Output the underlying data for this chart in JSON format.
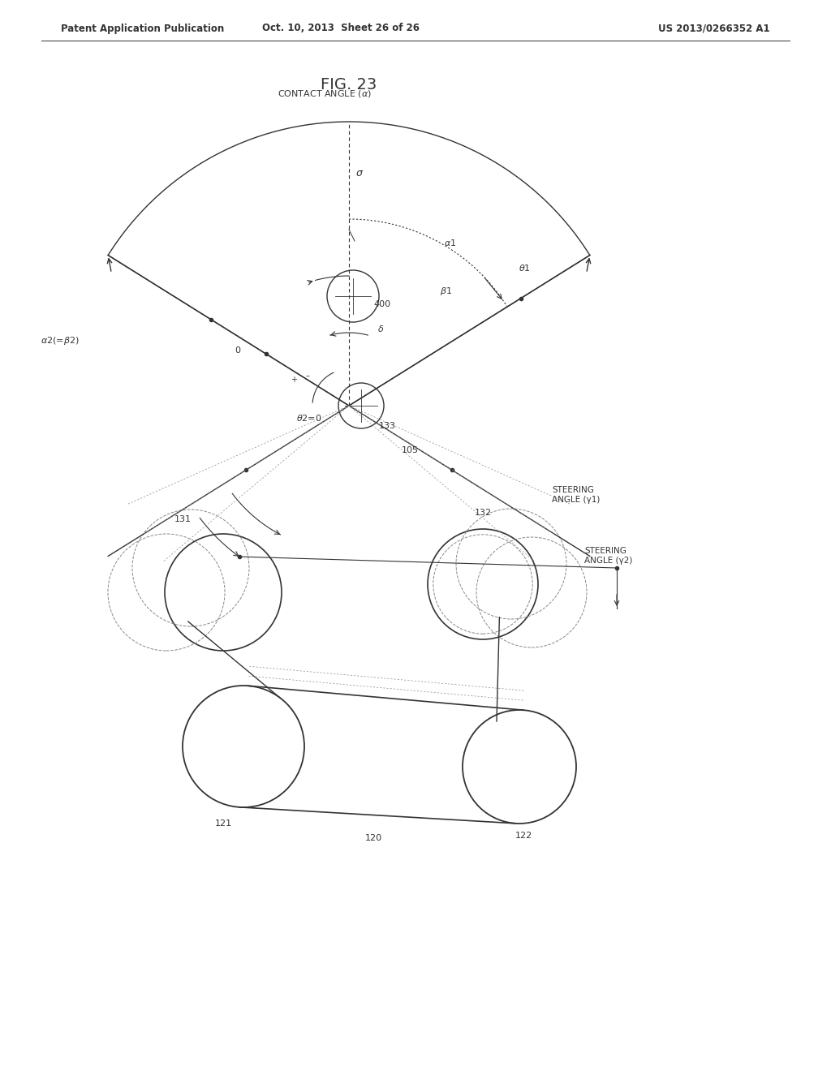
{
  "title": "FIG. 23",
  "header_left": "Patent Application Publication",
  "header_mid": "Oct. 10, 2013  Sheet 26 of 26",
  "header_right": "US 2013/0266352 A1",
  "bg_color": "#ffffff",
  "line_color": "#333333",
  "dashed_color": "#888888"
}
